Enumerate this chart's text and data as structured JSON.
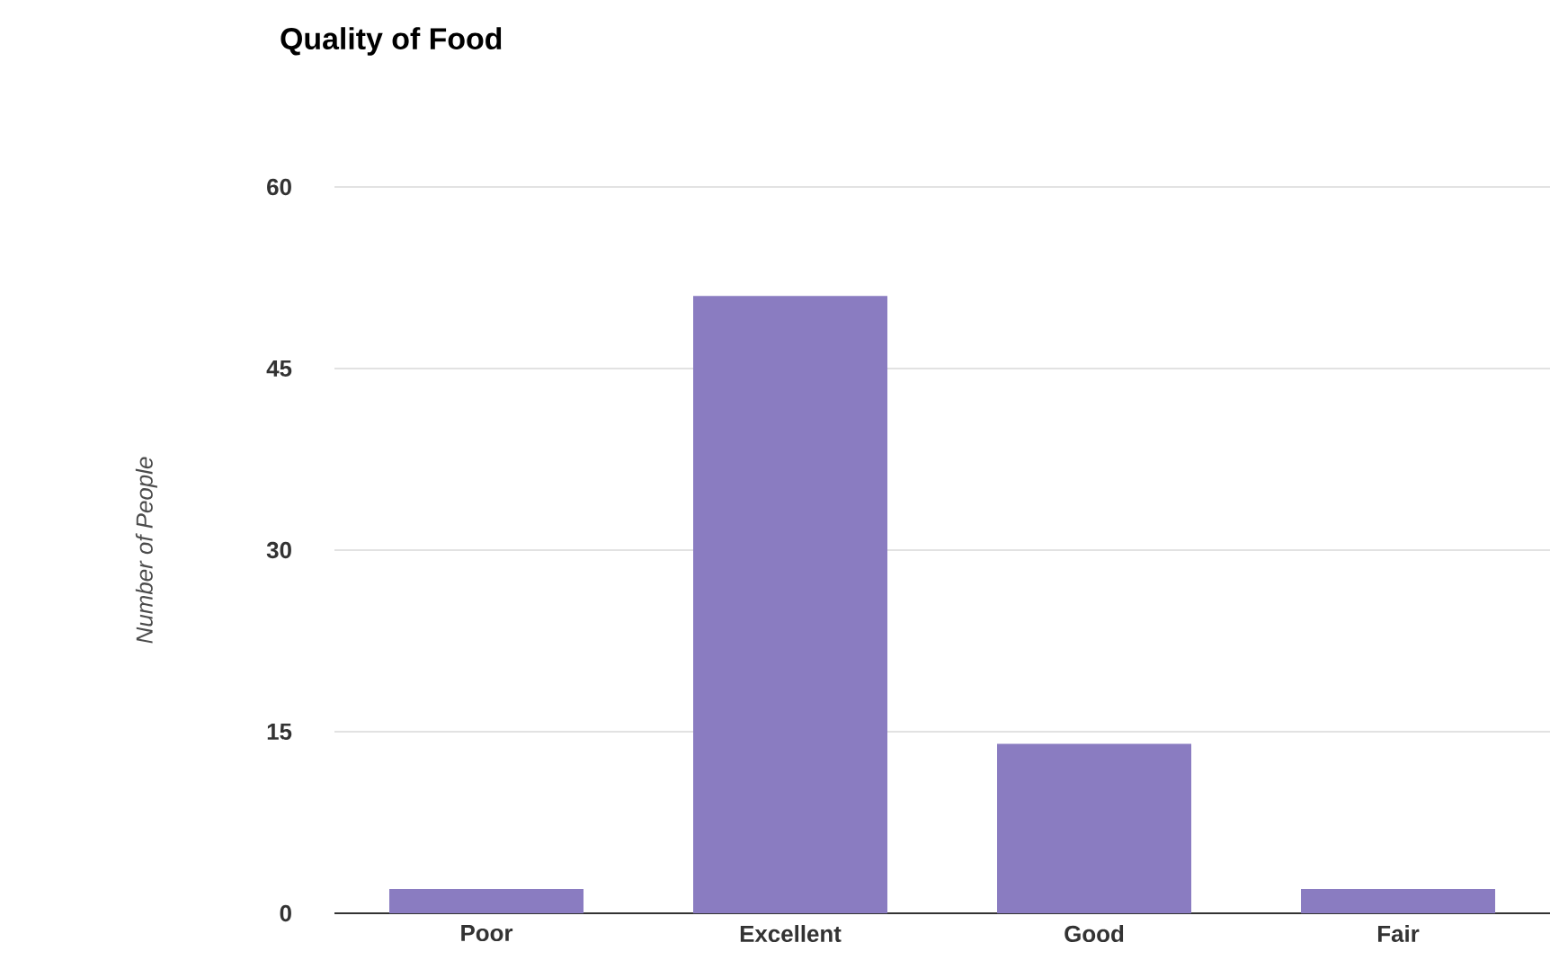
{
  "chart_data": {
    "type": "bar",
    "title": "Quality of Food",
    "ylabel": "Number of People",
    "categories": [
      "Poor",
      "Excellent",
      "Good",
      "Fair"
    ],
    "values": [
      2,
      51,
      14,
      2
    ],
    "color": "#8a7cc1",
    "ylim": [
      0,
      60
    ],
    "yticks": [
      0,
      15,
      30,
      45,
      60
    ],
    "grid": "y"
  }
}
